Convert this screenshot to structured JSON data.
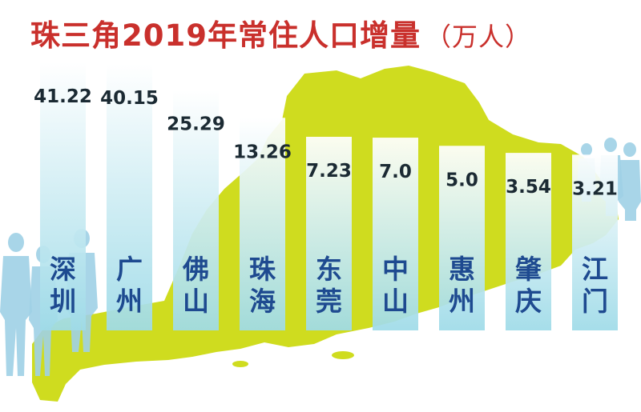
{
  "title": "珠三角2019年常住人口增量",
  "unit": "（万人）",
  "colors": {
    "title": "#c9302c",
    "map": "#cfdc1f",
    "bar_top": "#ffffff",
    "bar_bottom": "#9fdbe8",
    "value_text": "#1b2a33",
    "city_text": "#1e4a90",
    "people": "#9fd0e6"
  },
  "chart_data": {
    "type": "bar",
    "title": "珠三角2019年常住人口增量",
    "unit": "万人",
    "categories": [
      "深圳",
      "广州",
      "佛山",
      "珠海",
      "东莞",
      "中山",
      "惠州",
      "肇庆",
      "江门"
    ],
    "values": [
      41.22,
      40.15,
      25.29,
      13.26,
      7.23,
      7.0,
      5.0,
      3.54,
      3.21
    ],
    "labels": [
      "41.22",
      "40.15",
      "25.29",
      "13.26",
      "7.23",
      "7.0",
      "5.0",
      "3.54",
      "3.21"
    ]
  }
}
